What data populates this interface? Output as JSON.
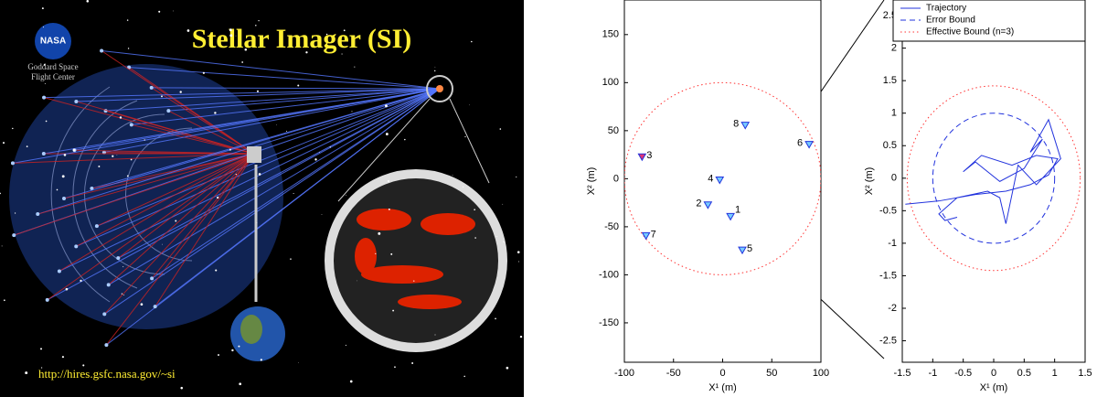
{
  "illustration": {
    "logo": "NASA",
    "center": [
      "Goddard Space",
      "Flight Center"
    ],
    "title": "Stellar Imager (SI)",
    "url": "http://hires.gsfc.nasa.gov/~si"
  },
  "chart_data": [
    {
      "type": "scatter",
      "xlabel": "X¹ (m)",
      "ylabel": "X² (m)",
      "xlim": [
        -100,
        100
      ],
      "ylim": [
        -191,
        186
      ],
      "xticks": [
        -100,
        -50,
        0,
        50,
        100
      ],
      "yticks": [
        -150,
        -100,
        -50,
        0,
        50,
        100,
        150
      ],
      "series": [
        {
          "color": "#2233dd",
          "labels": [
            "1",
            "2",
            "3",
            "4",
            "5",
            "6",
            "7",
            "8"
          ],
          "point_colors": [
            "#77ccff",
            "#77ccff",
            "#dd3377",
            "#77ccff",
            "#77ccff",
            "#77ccff",
            "#77ccff",
            "#77ccff"
          ],
          "x": [
            8,
            -15,
            -82,
            -3,
            20,
            88,
            -78,
            23
          ],
          "values": [
            -40,
            -28,
            22,
            -2,
            -75,
            35,
            -60,
            55
          ]
        }
      ],
      "circles": [
        {
          "radius": 100,
          "color": "#ff3333",
          "style": "dotted"
        }
      ]
    },
    {
      "type": "line",
      "xlabel": "X¹ (m)",
      "ylabel": "X² (m)",
      "xlim": [
        -1.5,
        1.5
      ],
      "ylim": [
        -2.83,
        2.74
      ],
      "xticks": [
        -1.5,
        -1,
        -0.5,
        0,
        0.5,
        1,
        1.5
      ],
      "yticks": [
        -2.5,
        -2,
        -1.5,
        -1,
        -0.5,
        0,
        0.5,
        1,
        1.5,
        2,
        2.5
      ],
      "legend": "upper right",
      "series": [
        {
          "name": "Trajectory",
          "color": "#2233dd",
          "x": [
            -1.45,
            -0.9,
            -0.3,
            0.2,
            0.6,
            0.9,
            1.05,
            0.7,
            0.3,
            -0.2,
            -0.5,
            -0.3,
            0.1,
            0.5,
            0.8,
            0.6,
            0.9,
            1.1,
            0.7,
            0.4,
            0.2,
            0.1,
            -0.1,
            -0.6,
            -0.9,
            -0.8,
            -0.6
          ],
          "values": [
            -0.4,
            -0.35,
            -0.25,
            -0.2,
            -0.1,
            0.05,
            0.3,
            0.35,
            0.2,
            0.35,
            0.1,
            0.25,
            -0.05,
            0.15,
            0.6,
            0.4,
            0.9,
            0.3,
            -0.1,
            0.2,
            -0.7,
            -0.3,
            -0.2,
            -0.3,
            -0.55,
            -0.65,
            -0.6
          ]
        }
      ],
      "circles": [
        {
          "name": "Error Bound",
          "radius": 1,
          "color": "#2233dd",
          "style": "dashed"
        },
        {
          "name": "Effective Bound (n=3)",
          "radius": 1.42,
          "color": "#ff3333",
          "style": "dotted"
        }
      ]
    }
  ]
}
